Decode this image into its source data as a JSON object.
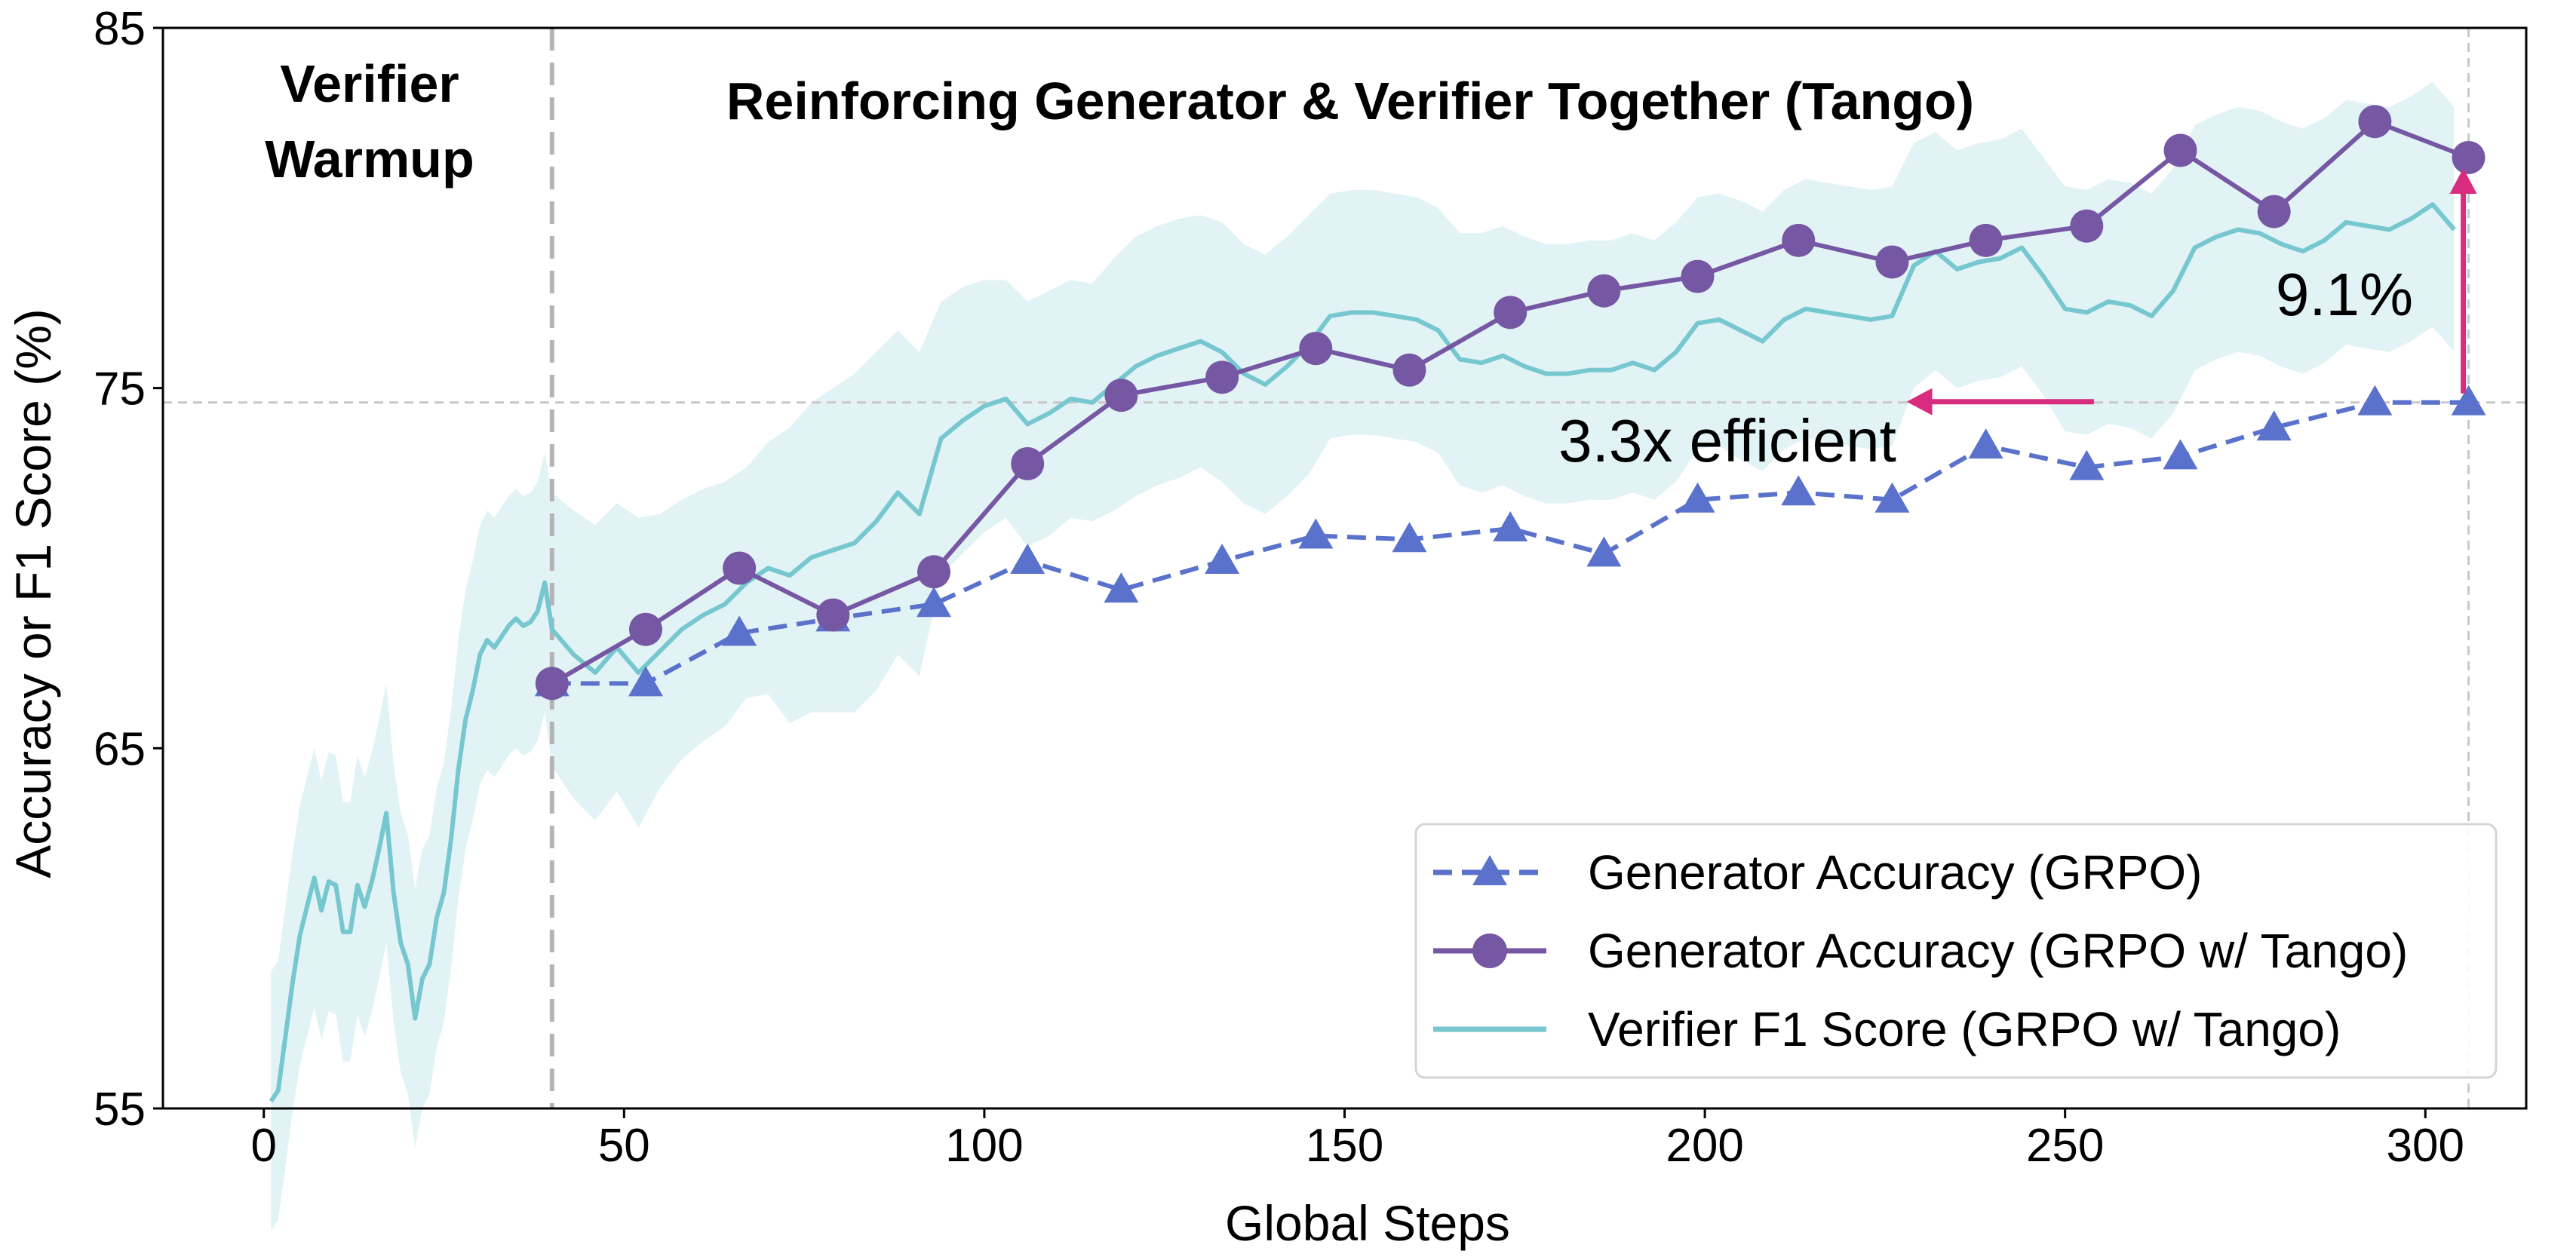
{
  "chart_data": {
    "type": "line",
    "xlabel": "Global Steps",
    "ylabel": "Accuracy or F1 Score (%)",
    "xlim": [
      -14,
      314
    ],
    "ylim": [
      55,
      85
    ],
    "xticks": [
      0,
      50,
      100,
      150,
      200,
      250,
      300
    ],
    "yticks": [
      55,
      65,
      75,
      85
    ],
    "grid": false,
    "legend_position": "lower-right",
    "colors": {
      "generator": "#5a72cc",
      "tango": "#7657a3",
      "verifier_line": "#76c7cf",
      "verifier_band": "#d8eff1",
      "annotation": "#d92c7f",
      "reference": "#c8c8c8"
    },
    "phase_labels": {
      "warmup": [
        "Verifier",
        "Warmup"
      ],
      "tango": "Reinforcing Generator & Verifier Together (Tango)"
    },
    "annotations": {
      "efficiency": "3.3x efficient",
      "gain": "9.1%"
    },
    "reference_lines": {
      "warmup_end_x": 40,
      "final_step_x": 306,
      "baseline_y": 74.6
    },
    "series": [
      {
        "name": "Generator Accuracy (GRPO)",
        "key": "generator",
        "style": "dashed-triangle",
        "x": [
          40,
          53,
          66,
          79,
          93,
          106,
          119,
          133,
          146,
          159,
          173,
          186,
          199,
          213,
          226,
          239,
          253,
          266,
          279,
          293,
          306
        ],
        "y": [
          66.8,
          66.8,
          68.2,
          68.6,
          69.0,
          70.2,
          69.4,
          70.2,
          70.9,
          70.8,
          71.1,
          70.4,
          71.9,
          72.1,
          71.9,
          73.4,
          72.8,
          73.1,
          73.9,
          74.6,
          74.6
        ]
      },
      {
        "name": "Generator Accuracy (GRPO w/ Tango)",
        "key": "tango",
        "style": "solid-circle",
        "x": [
          40,
          53,
          66,
          79,
          93,
          106,
          119,
          133,
          146,
          159,
          173,
          186,
          199,
          213,
          226,
          239,
          253,
          266,
          279,
          293,
          306
        ],
        "y": [
          66.8,
          68.3,
          70.0,
          68.7,
          69.9,
          72.9,
          74.8,
          75.3,
          76.1,
          75.5,
          77.1,
          77.7,
          78.1,
          79.1,
          78.5,
          79.1,
          79.5,
          81.6,
          79.9,
          82.4,
          81.4
        ]
      },
      {
        "name": "Verifier F1 Score (GRPO w/ Tango)",
        "key": "verifier",
        "style": "solid-line-band",
        "x": [
          1,
          2,
          3,
          4,
          5,
          6,
          7,
          8,
          9,
          10,
          11,
          12,
          13,
          14,
          15,
          16,
          17,
          18,
          19,
          20,
          21,
          22,
          23,
          24,
          25,
          26,
          27,
          28,
          29,
          30,
          31,
          32,
          33,
          34,
          35,
          36,
          37,
          38,
          39,
          40,
          43,
          46,
          49,
          52,
          55,
          58,
          61,
          64,
          67,
          70,
          73,
          76,
          79,
          82,
          85,
          88,
          91,
          94,
          97,
          100,
          103,
          106,
          109,
          112,
          115,
          118,
          121,
          124,
          127,
          130,
          133,
          136,
          139,
          142,
          145,
          148,
          151,
          154,
          157,
          160,
          163,
          166,
          169,
          172,
          175,
          178,
          181,
          184,
          187,
          190,
          193,
          196,
          199,
          202,
          205,
          208,
          211,
          214,
          217,
          220,
          223,
          226,
          229,
          232,
          235,
          238,
          241,
          244,
          247,
          250,
          253,
          256,
          259,
          262,
          265,
          268,
          271,
          274,
          277,
          280,
          283,
          286,
          289,
          292,
          295,
          298,
          301,
          304
        ],
        "y": [
          55.2,
          55.5,
          57.0,
          58.5,
          59.8,
          60.6,
          61.4,
          60.5,
          61.3,
          61.2,
          59.9,
          59.9,
          61.2,
          60.6,
          61.3,
          62.2,
          63.2,
          61.0,
          59.6,
          59.0,
          57.5,
          58.6,
          59.0,
          60.3,
          61.0,
          62.5,
          64.4,
          65.8,
          66.6,
          67.6,
          68.0,
          67.8,
          68.1,
          68.4,
          68.6,
          68.4,
          68.5,
          68.8,
          69.6,
          68.3,
          67.6,
          67.1,
          67.8,
          67.1,
          67.7,
          68.3,
          68.7,
          69.0,
          69.6,
          70.0,
          69.8,
          70.3,
          70.5,
          70.7,
          71.3,
          72.1,
          71.5,
          73.6,
          74.1,
          74.5,
          74.7,
          74.0,
          74.3,
          74.7,
          74.6,
          75.1,
          75.6,
          75.9,
          76.1,
          76.3,
          76.0,
          75.4,
          75.1,
          75.6,
          76.2,
          77.0,
          77.1,
          77.1,
          77.0,
          76.9,
          76.6,
          75.8,
          75.7,
          75.9,
          75.6,
          75.4,
          75.4,
          75.5,
          75.5,
          75.7,
          75.5,
          76.0,
          76.8,
          76.9,
          76.6,
          76.3,
          76.9,
          77.2,
          77.1,
          77.0,
          76.9,
          77.0,
          78.4,
          78.8,
          78.3,
          78.5,
          78.6,
          78.9,
          78.1,
          77.2,
          77.1,
          77.4,
          77.3,
          77.0,
          77.7,
          78.9,
          79.2,
          79.4,
          79.3,
          79.0,
          78.8,
          79.1,
          79.6,
          79.5,
          79.4,
          79.7,
          80.1,
          79.4
        ],
        "band_upper": [
          58.8,
          59.1,
          60.6,
          62.1,
          63.4,
          64.2,
          65.0,
          64.1,
          64.9,
          64.8,
          63.5,
          63.5,
          64.8,
          64.2,
          64.9,
          65.8,
          66.8,
          64.6,
          63.2,
          62.6,
          61.1,
          62.2,
          62.6,
          63.9,
          64.6,
          66.1,
          68.0,
          69.4,
          70.2,
          71.2,
          71.6,
          71.4,
          71.7,
          72.0,
          72.2,
          72.0,
          72.1,
          72.4,
          73.2,
          72.1,
          71.6,
          71.2,
          71.8,
          71.4,
          71.5,
          71.9,
          72.2,
          72.4,
          72.8,
          73.5,
          73.9,
          74.6,
          75.0,
          75.4,
          76.0,
          76.6,
          76.0,
          77.4,
          77.8,
          78.0,
          78.0,
          77.4,
          77.7,
          78.0,
          77.9,
          78.6,
          79.2,
          79.5,
          79.7,
          79.8,
          79.6,
          79.0,
          78.7,
          79.2,
          79.8,
          80.4,
          80.5,
          80.5,
          80.4,
          80.3,
          80.0,
          79.3,
          79.3,
          79.5,
          79.2,
          79.0,
          79.0,
          79.1,
          79.1,
          79.3,
          79.1,
          79.6,
          80.3,
          80.4,
          80.2,
          79.9,
          80.5,
          80.8,
          80.7,
          80.6,
          80.5,
          80.6,
          81.8,
          82.1,
          81.6,
          81.8,
          81.9,
          82.2,
          81.4,
          80.6,
          80.5,
          80.8,
          80.7,
          80.4,
          81.1,
          82.3,
          82.6,
          82.8,
          82.7,
          82.4,
          82.2,
          82.5,
          83.0,
          82.9,
          82.8,
          83.1,
          83.5,
          82.8
        ],
        "band_lower": [
          51.6,
          51.9,
          53.4,
          54.9,
          56.2,
          57.0,
          57.8,
          56.9,
          57.7,
          57.6,
          56.3,
          56.3,
          57.6,
          57.0,
          57.7,
          58.6,
          59.6,
          57.4,
          56.0,
          55.4,
          53.9,
          55.0,
          55.4,
          56.7,
          57.4,
          58.9,
          60.8,
          62.2,
          63.0,
          64.0,
          64.4,
          64.2,
          64.5,
          64.8,
          65.0,
          64.8,
          64.9,
          65.2,
          66.0,
          64.5,
          63.6,
          63.0,
          63.8,
          62.8,
          63.9,
          64.7,
          65.2,
          65.6,
          66.4,
          66.5,
          65.7,
          66.0,
          66.0,
          66.0,
          66.6,
          67.6,
          67.0,
          69.8,
          70.4,
          71.0,
          71.4,
          70.6,
          70.9,
          71.4,
          71.3,
          71.6,
          72.0,
          72.3,
          72.5,
          72.8,
          72.4,
          71.8,
          71.5,
          72.0,
          72.6,
          73.6,
          73.7,
          73.7,
          73.6,
          73.5,
          73.2,
          72.3,
          72.1,
          72.3,
          72.0,
          71.8,
          71.8,
          71.9,
          71.9,
          72.1,
          71.9,
          72.4,
          73.3,
          73.4,
          73.0,
          72.7,
          73.3,
          73.6,
          73.5,
          73.4,
          73.3,
          73.4,
          75.0,
          75.5,
          75.0,
          75.2,
          75.3,
          75.6,
          74.8,
          73.8,
          73.7,
          74.0,
          73.9,
          73.6,
          74.3,
          75.5,
          75.8,
          76.0,
          75.9,
          75.6,
          75.4,
          75.7,
          76.2,
          76.1,
          76.0,
          76.3,
          76.7,
          76.0
        ]
      }
    ]
  }
}
